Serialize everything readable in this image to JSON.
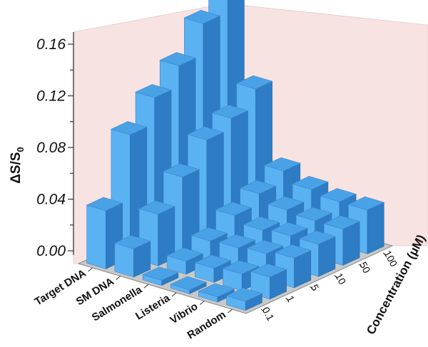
{
  "chart_data": {
    "type": "bar",
    "subtype": "3d-bar",
    "title": "",
    "ylabel": "ΔS/S",
    "ylabel_subscript": "0",
    "xlabel": "",
    "zlabel": "Concentration (μM)",
    "ylim": [
      0,
      0.16
    ],
    "yticks": [
      "0.00",
      "0.04",
      "0.08",
      "0.12",
      "0.16"
    ],
    "categories": [
      "Target DNA",
      "SM DNA",
      "Salmonella",
      "Listeria",
      "Vibrio",
      "Random"
    ],
    "concentrations": [
      "0.1",
      "1",
      "5",
      "10",
      "50",
      "100"
    ],
    "series": [
      {
        "name": "Target DNA",
        "values": [
          0.045,
          0.095,
          0.115,
          0.131,
          0.155,
          0.175
        ]
      },
      {
        "name": "SM DNA",
        "values": [
          0.022,
          0.04,
          0.06,
          0.08,
          0.088,
          0.102
        ]
      },
      {
        "name": "Salmonella",
        "values": [
          0.004,
          0.01,
          0.017,
          0.028,
          0.036,
          0.045
        ]
      },
      {
        "name": "Listeria",
        "values": [
          0.003,
          0.011,
          0.018,
          0.023,
          0.03,
          0.037
        ]
      },
      {
        "name": "Vibrio",
        "values": [
          0.004,
          0.013,
          0.02,
          0.025,
          0.028,
          0.034
        ]
      },
      {
        "name": "Random",
        "values": [
          0.007,
          0.017,
          0.023,
          0.025,
          0.028,
          0.034
        ]
      }
    ],
    "colors": {
      "bar_front": "#5ab2f2",
      "bar_side": "#2d7cc4",
      "bar_top": "#4aa2e6",
      "floor": "#c9c9c9",
      "wall": "#f8e3e3"
    }
  }
}
